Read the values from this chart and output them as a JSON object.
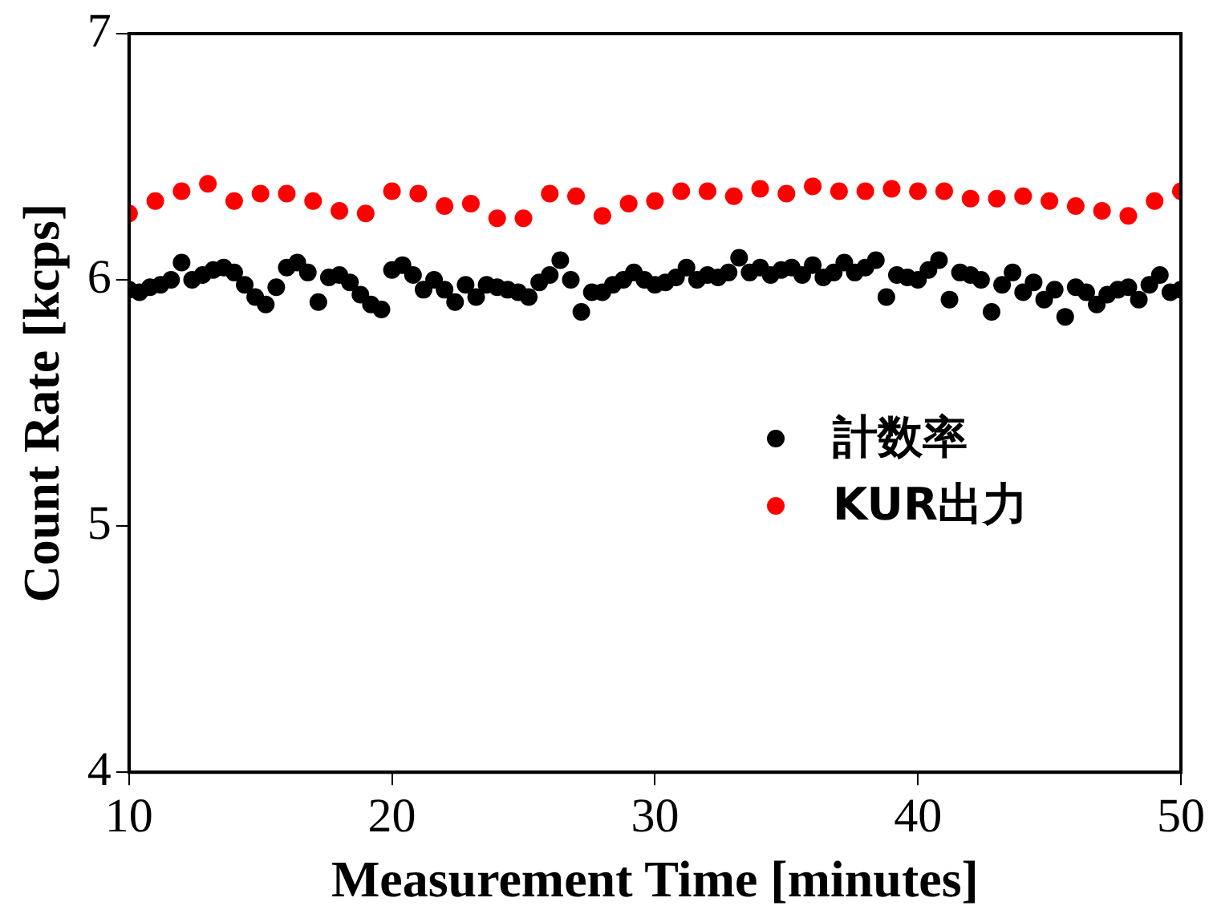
{
  "chart_data": {
    "type": "scatter",
    "xlabel": "Measurement Time [minutes]",
    "ylabel": "Count Rate [kcps]",
    "xlim": [
      10,
      50
    ],
    "ylim": [
      4,
      7
    ],
    "xticks": [
      10,
      20,
      30,
      40,
      50
    ],
    "yticks": [
      4,
      5,
      6,
      7
    ],
    "grid": false,
    "legend": "right",
    "marker": "circle",
    "series": [
      {
        "name": "計数率",
        "color": "#000000",
        "x": [
          10,
          10.4,
          10.8,
          11.2,
          11.6,
          12,
          12.4,
          12.8,
          13.2,
          13.6,
          14,
          14.4,
          14.8,
          15.2,
          15.6,
          16,
          16.4,
          16.8,
          17.2,
          17.6,
          18,
          18.4,
          18.8,
          19.2,
          19.6,
          20,
          20.4,
          20.8,
          21.2,
          21.6,
          22,
          22.4,
          22.8,
          23.2,
          23.6,
          24,
          24.4,
          24.8,
          25.2,
          25.6,
          26,
          26.4,
          26.8,
          27.2,
          27.6,
          28,
          28.4,
          28.8,
          29.2,
          29.6,
          30,
          30.4,
          30.8,
          31.2,
          31.6,
          32,
          32.4,
          32.8,
          33.2,
          33.6,
          34,
          34.4,
          34.8,
          35.2,
          35.6,
          36,
          36.4,
          36.8,
          37.2,
          37.6,
          38,
          38.4,
          38.8,
          39.2,
          39.6,
          40,
          40.4,
          40.8,
          41.2,
          41.6,
          42,
          42.4,
          42.8,
          43.2,
          43.6,
          44,
          44.4,
          44.8,
          45.2,
          45.6,
          46,
          46.4,
          46.8,
          47.2,
          47.6,
          48,
          48.4,
          48.8,
          49.2,
          49.6,
          50
        ],
        "values": [
          5.96,
          5.95,
          5.97,
          5.98,
          6.0,
          6.07,
          6.0,
          6.02,
          6.04,
          6.05,
          6.03,
          5.98,
          5.93,
          5.9,
          5.97,
          6.05,
          6.07,
          6.03,
          5.91,
          6.01,
          6.02,
          5.99,
          5.94,
          5.9,
          5.88,
          6.04,
          6.06,
          6.02,
          5.96,
          6.0,
          5.96,
          5.91,
          5.98,
          5.93,
          5.98,
          5.97,
          5.96,
          5.95,
          5.93,
          5.99,
          6.02,
          6.08,
          6.0,
          5.87,
          5.95,
          5.95,
          5.98,
          6.0,
          6.03,
          6.0,
          5.98,
          5.99,
          6.01,
          6.05,
          6.0,
          6.02,
          6.01,
          6.03,
          6.09,
          6.03,
          6.05,
          6.02,
          6.04,
          6.05,
          6.02,
          6.06,
          6.01,
          6.03,
          6.07,
          6.03,
          6.05,
          6.08,
          5.93,
          6.02,
          6.01,
          6.0,
          6.04,
          6.08,
          5.92,
          6.03,
          6.02,
          6.0,
          5.87,
          5.98,
          6.03,
          5.95,
          5.99,
          5.92,
          5.96,
          5.85,
          5.97,
          5.95,
          5.9,
          5.94,
          5.96,
          5.97,
          5.92,
          5.98,
          6.02,
          5.95,
          5.96
        ]
      },
      {
        "name": "KUR出力",
        "color": "#ff0000",
        "x": [
          10,
          11,
          12,
          13,
          14,
          15,
          16,
          17,
          18,
          19,
          20,
          21,
          22,
          23,
          24,
          25,
          26,
          27,
          28,
          29,
          30,
          31,
          32,
          33,
          34,
          35,
          36,
          37,
          38,
          39,
          40,
          41,
          42,
          43,
          44,
          45,
          46,
          47,
          48,
          49,
          50
        ],
        "values": [
          6.27,
          6.32,
          6.36,
          6.39,
          6.32,
          6.35,
          6.35,
          6.32,
          6.28,
          6.27,
          6.36,
          6.35,
          6.3,
          6.31,
          6.25,
          6.25,
          6.35,
          6.34,
          6.26,
          6.31,
          6.32,
          6.36,
          6.36,
          6.34,
          6.37,
          6.35,
          6.38,
          6.36,
          6.36,
          6.37,
          6.36,
          6.36,
          6.33,
          6.33,
          6.34,
          6.32,
          6.3,
          6.28,
          6.26,
          6.32,
          6.36
        ]
      }
    ]
  }
}
